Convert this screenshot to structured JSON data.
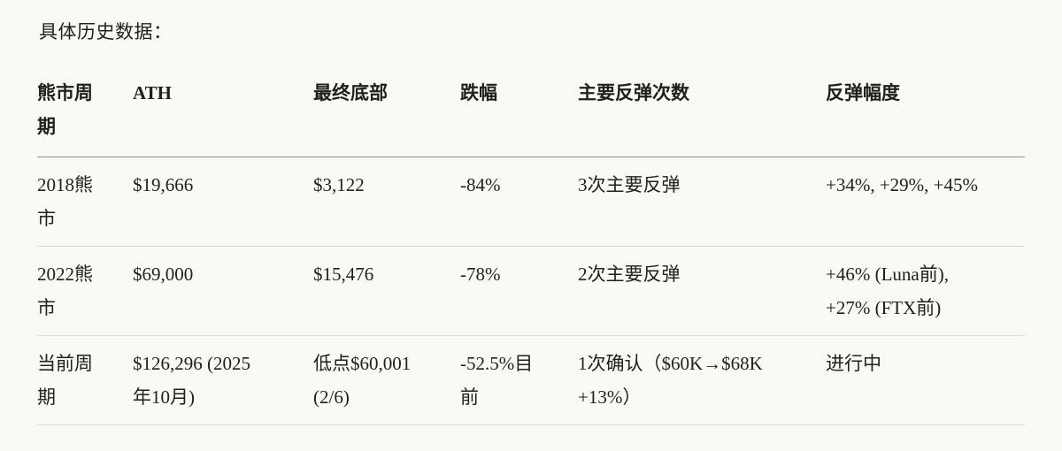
{
  "title": "具体历史数据：",
  "table": {
    "headers": [
      "熊市周\n期",
      "ATH",
      "最终底部",
      "跌幅",
      "主要反弹次数",
      "反弹幅度"
    ],
    "rows": [
      {
        "cells": [
          "2018熊\n市",
          "$19,666",
          "$3,122",
          "-84%",
          "3次主要反弹",
          "+34%, +29%, +45%"
        ]
      },
      {
        "cells": [
          "2022熊\n市",
          "$69,000",
          "$15,476",
          "-78%",
          "2次主要反弹",
          "+46% (Luna前),\n+27% (FTX前)"
        ]
      },
      {
        "cells": [
          "当前周\n期",
          "$126,296 (2025\n年10月)",
          "低点$60,001\n(2/6)",
          "-52.5%目\n前",
          "1次确认（$60K→$68K\n+13%）",
          "进行中"
        ]
      }
    ]
  },
  "colors": {
    "background": "#faf9f3",
    "text": "#21201c",
    "header_border": "#8e8d86",
    "row_border": "#dbdad2"
  }
}
